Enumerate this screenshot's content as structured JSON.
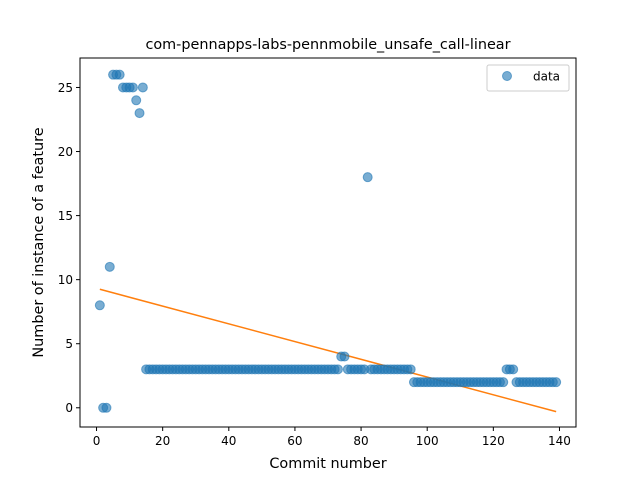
{
  "chart_data": {
    "type": "scatter",
    "title": "com-pennapps-labs-pennmobile_unsafe_call-linear",
    "xlabel": "Commit number",
    "ylabel": "Number of instance of a feature",
    "xlim": [
      -5,
      145
    ],
    "ylim": [
      -1.5,
      27.3
    ],
    "xticks": [
      0,
      20,
      40,
      60,
      80,
      100,
      120,
      140
    ],
    "yticks": [
      0,
      5,
      10,
      15,
      20,
      25
    ],
    "grid": false,
    "legend": {
      "position": "top-right",
      "entries": [
        "data"
      ]
    },
    "colors": {
      "data": "#1f77b4",
      "fit": "#ff7f0e"
    },
    "series": [
      {
        "name": "data",
        "kind": "scatter",
        "points": [
          [
            1,
            8
          ],
          [
            2,
            0
          ],
          [
            3,
            0
          ],
          [
            4,
            11
          ],
          [
            5,
            26
          ],
          [
            6,
            26
          ],
          [
            7,
            26
          ],
          [
            8,
            25
          ],
          [
            9,
            25
          ],
          [
            10,
            25
          ],
          [
            11,
            25
          ],
          [
            12,
            24
          ],
          [
            13,
            23
          ],
          [
            14,
            25
          ],
          [
            15,
            3
          ],
          [
            16,
            3
          ],
          [
            17,
            3
          ],
          [
            18,
            3
          ],
          [
            19,
            3
          ],
          [
            20,
            3
          ],
          [
            21,
            3
          ],
          [
            22,
            3
          ],
          [
            23,
            3
          ],
          [
            24,
            3
          ],
          [
            25,
            3
          ],
          [
            26,
            3
          ],
          [
            27,
            3
          ],
          [
            28,
            3
          ],
          [
            29,
            3
          ],
          [
            30,
            3
          ],
          [
            31,
            3
          ],
          [
            32,
            3
          ],
          [
            33,
            3
          ],
          [
            34,
            3
          ],
          [
            35,
            3
          ],
          [
            36,
            3
          ],
          [
            37,
            3
          ],
          [
            38,
            3
          ],
          [
            39,
            3
          ],
          [
            40,
            3
          ],
          [
            41,
            3
          ],
          [
            42,
            3
          ],
          [
            43,
            3
          ],
          [
            44,
            3
          ],
          [
            45,
            3
          ],
          [
            46,
            3
          ],
          [
            47,
            3
          ],
          [
            48,
            3
          ],
          [
            49,
            3
          ],
          [
            50,
            3
          ],
          [
            51,
            3
          ],
          [
            52,
            3
          ],
          [
            53,
            3
          ],
          [
            54,
            3
          ],
          [
            55,
            3
          ],
          [
            56,
            3
          ],
          [
            57,
            3
          ],
          [
            58,
            3
          ],
          [
            59,
            3
          ],
          [
            60,
            3
          ],
          [
            61,
            3
          ],
          [
            62,
            3
          ],
          [
            63,
            3
          ],
          [
            64,
            3
          ],
          [
            65,
            3
          ],
          [
            66,
            3
          ],
          [
            67,
            3
          ],
          [
            68,
            3
          ],
          [
            69,
            3
          ],
          [
            70,
            3
          ],
          [
            71,
            3
          ],
          [
            72,
            3
          ],
          [
            73,
            3
          ],
          [
            74,
            4
          ],
          [
            75,
            4
          ],
          [
            76,
            3
          ],
          [
            77,
            3
          ],
          [
            78,
            3
          ],
          [
            79,
            3
          ],
          [
            80,
            3
          ],
          [
            81,
            3
          ],
          [
            82,
            18
          ],
          [
            83,
            3
          ],
          [
            84,
            3
          ],
          [
            85,
            3
          ],
          [
            86,
            3
          ],
          [
            87,
            3
          ],
          [
            88,
            3
          ],
          [
            89,
            3
          ],
          [
            90,
            3
          ],
          [
            91,
            3
          ],
          [
            92,
            3
          ],
          [
            93,
            3
          ],
          [
            94,
            3
          ],
          [
            95,
            3
          ],
          [
            96,
            2
          ],
          [
            97,
            2
          ],
          [
            98,
            2
          ],
          [
            99,
            2
          ],
          [
            100,
            2
          ],
          [
            101,
            2
          ],
          [
            102,
            2
          ],
          [
            103,
            2
          ],
          [
            104,
            2
          ],
          [
            105,
            2
          ],
          [
            106,
            2
          ],
          [
            107,
            2
          ],
          [
            108,
            2
          ],
          [
            109,
            2
          ],
          [
            110,
            2
          ],
          [
            111,
            2
          ],
          [
            112,
            2
          ],
          [
            113,
            2
          ],
          [
            114,
            2
          ],
          [
            115,
            2
          ],
          [
            116,
            2
          ],
          [
            117,
            2
          ],
          [
            118,
            2
          ],
          [
            119,
            2
          ],
          [
            120,
            2
          ],
          [
            121,
            2
          ],
          [
            122,
            2
          ],
          [
            123,
            2
          ],
          [
            124,
            3
          ],
          [
            125,
            3
          ],
          [
            126,
            3
          ],
          [
            127,
            2
          ],
          [
            128,
            2
          ],
          [
            129,
            2
          ],
          [
            130,
            2
          ],
          [
            131,
            2
          ],
          [
            132,
            2
          ],
          [
            133,
            2
          ],
          [
            134,
            2
          ],
          [
            135,
            2
          ],
          [
            136,
            2
          ],
          [
            137,
            2
          ],
          [
            138,
            2
          ],
          [
            139,
            2
          ]
        ]
      },
      {
        "name": "",
        "kind": "line",
        "points": [
          [
            1,
            9.25
          ],
          [
            139,
            -0.3
          ]
        ]
      }
    ]
  }
}
